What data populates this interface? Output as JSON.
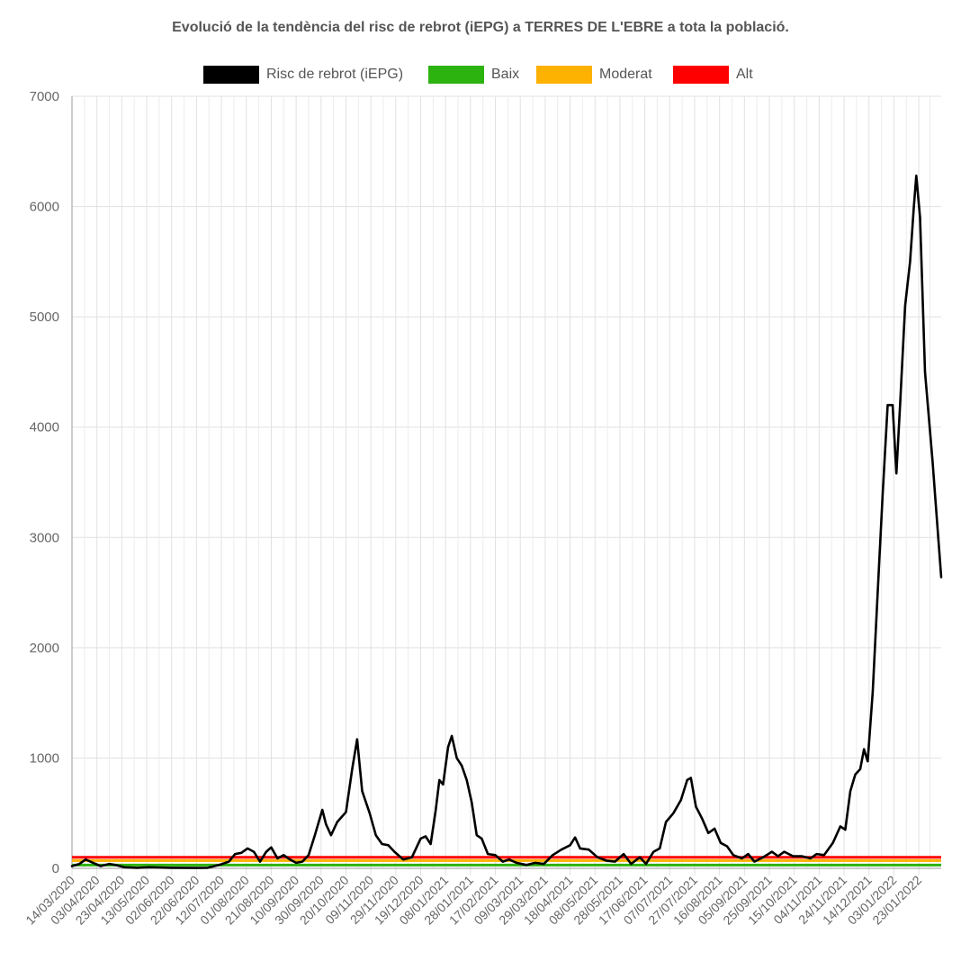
{
  "title": "Evolució de la tendència del risc de rebrot (iEPG) a TERRES DE L'EBRE a tota la població.",
  "legend": [
    {
      "label": "Risc de rebrot (iEPG)",
      "color": "#000000"
    },
    {
      "label": "Baix",
      "color": "#2db30f"
    },
    {
      "label": "Moderat",
      "color": "#fdb100"
    },
    {
      "label": "Alt",
      "color": "#fe0000"
    }
  ],
  "chart_data": {
    "type": "line",
    "title": "Evolució de la tendència del risc de rebrot (iEPG) a TERRES DE L'EBRE a tota la població.",
    "xlabel": "",
    "ylabel": "",
    "ylim": [
      0,
      7000
    ],
    "yticks": [
      0,
      1000,
      2000,
      3000,
      4000,
      5000,
      6000,
      7000
    ],
    "grid": true,
    "legend_position": "top",
    "x_start": "14/03/2020",
    "x_end": "10/02/2022",
    "x_tick_labels": [
      "14/03/2020",
      "03/04/2020",
      "23/04/2020",
      "13/05/2020",
      "02/06/2020",
      "22/06/2020",
      "12/07/2020",
      "01/08/2020",
      "21/08/2020",
      "10/09/2020",
      "30/09/2020",
      "20/10/2020",
      "09/11/2020",
      "29/11/2020",
      "19/12/2020",
      "08/01/2021",
      "28/01/2021",
      "17/02/2021",
      "09/03/2021",
      "29/03/2021",
      "18/04/2021",
      "08/05/2021",
      "28/05/2021",
      "17/06/2021",
      "07/07/2021",
      "27/07/2021",
      "16/08/2021",
      "05/09/2021",
      "25/09/2021",
      "15/10/2021",
      "04/11/2021",
      "24/11/2021",
      "14/12/2021",
      "03/01/2022",
      "23/01/2022"
    ],
    "series": [
      {
        "name": "Risc de rebrot (iEPG)",
        "color": "#000000",
        "points": [
          [
            "14/03/2020",
            20
          ],
          [
            "20/03/2020",
            40
          ],
          [
            "25/03/2020",
            80
          ],
          [
            "31/03/2020",
            50
          ],
          [
            "06/04/2020",
            20
          ],
          [
            "13/04/2020",
            40
          ],
          [
            "18/04/2020",
            30
          ],
          [
            "25/04/2020",
            10
          ],
          [
            "05/05/2020",
            5
          ],
          [
            "15/05/2020",
            10
          ],
          [
            "01/06/2020",
            5
          ],
          [
            "22/06/2020",
            3
          ],
          [
            "01/07/2020",
            5
          ],
          [
            "10/07/2020",
            30
          ],
          [
            "18/07/2020",
            60
          ],
          [
            "23/07/2020",
            130
          ],
          [
            "28/07/2020",
            140
          ],
          [
            "02/08/2020",
            180
          ],
          [
            "07/08/2020",
            150
          ],
          [
            "12/08/2020",
            60
          ],
          [
            "17/08/2020",
            150
          ],
          [
            "21/08/2020",
            190
          ],
          [
            "26/08/2020",
            90
          ],
          [
            "31/08/2020",
            120
          ],
          [
            "05/09/2020",
            80
          ],
          [
            "10/09/2020",
            50
          ],
          [
            "15/09/2020",
            60
          ],
          [
            "20/09/2020",
            120
          ],
          [
            "25/09/2020",
            300
          ],
          [
            "01/10/2020",
            530
          ],
          [
            "04/10/2020",
            400
          ],
          [
            "08/10/2020",
            300
          ],
          [
            "13/10/2020",
            420
          ],
          [
            "20/10/2020",
            510
          ],
          [
            "25/10/2020",
            900
          ],
          [
            "29/10/2020",
            1170
          ],
          [
            "02/11/2020",
            700
          ],
          [
            "08/11/2020",
            500
          ],
          [
            "13/11/2020",
            300
          ],
          [
            "18/11/2020",
            220
          ],
          [
            "23/11/2020",
            210
          ],
          [
            "28/11/2020",
            150
          ],
          [
            "05/12/2020",
            80
          ],
          [
            "12/12/2020",
            100
          ],
          [
            "19/12/2020",
            270
          ],
          [
            "23/12/2020",
            290
          ],
          [
            "27/12/2020",
            220
          ],
          [
            "31/12/2020",
            520
          ],
          [
            "03/01/2021",
            800
          ],
          [
            "06/01/2021",
            760
          ],
          [
            "10/01/2021",
            1100
          ],
          [
            "13/01/2021",
            1200
          ],
          [
            "17/01/2021",
            1000
          ],
          [
            "21/01/2021",
            930
          ],
          [
            "25/01/2021",
            800
          ],
          [
            "29/01/2021",
            600
          ],
          [
            "02/02/2021",
            300
          ],
          [
            "06/02/2021",
            270
          ],
          [
            "11/02/2021",
            130
          ],
          [
            "17/02/2021",
            120
          ],
          [
            "23/02/2021",
            60
          ],
          [
            "28/02/2021",
            80
          ],
          [
            "06/03/2021",
            50
          ],
          [
            "14/03/2021",
            30
          ],
          [
            "21/03/2021",
            50
          ],
          [
            "28/03/2021",
            40
          ],
          [
            "04/04/2021",
            120
          ],
          [
            "11/04/2021",
            170
          ],
          [
            "18/04/2021",
            210
          ],
          [
            "22/04/2021",
            280
          ],
          [
            "26/04/2021",
            180
          ],
          [
            "03/05/2021",
            170
          ],
          [
            "10/05/2021",
            100
          ],
          [
            "17/05/2021",
            70
          ],
          [
            "24/05/2021",
            60
          ],
          [
            "31/05/2021",
            130
          ],
          [
            "06/06/2021",
            40
          ],
          [
            "13/06/2021",
            100
          ],
          [
            "18/06/2021",
            40
          ],
          [
            "24/06/2021",
            150
          ],
          [
            "29/06/2021",
            180
          ],
          [
            "04/07/2021",
            420
          ],
          [
            "10/07/2021",
            500
          ],
          [
            "16/07/2021",
            620
          ],
          [
            "21/07/2021",
            800
          ],
          [
            "24/07/2021",
            820
          ],
          [
            "28/07/2021",
            560
          ],
          [
            "02/08/2021",
            450
          ],
          [
            "07/08/2021",
            320
          ],
          [
            "12/08/2021",
            360
          ],
          [
            "17/08/2021",
            230
          ],
          [
            "22/08/2021",
            200
          ],
          [
            "27/08/2021",
            120
          ],
          [
            "03/09/2021",
            90
          ],
          [
            "08/09/2021",
            130
          ],
          [
            "13/09/2021",
            60
          ],
          [
            "20/09/2021",
            100
          ],
          [
            "27/09/2021",
            150
          ],
          [
            "02/10/2021",
            110
          ],
          [
            "07/10/2021",
            150
          ],
          [
            "14/10/2021",
            110
          ],
          [
            "21/10/2021",
            110
          ],
          [
            "28/10/2021",
            90
          ],
          [
            "02/11/2021",
            130
          ],
          [
            "08/11/2021",
            120
          ],
          [
            "15/11/2021",
            230
          ],
          [
            "21/11/2021",
            380
          ],
          [
            "25/11/2021",
            350
          ],
          [
            "29/11/2021",
            700
          ],
          [
            "03/12/2021",
            850
          ],
          [
            "07/12/2021",
            900
          ],
          [
            "10/12/2021",
            1080
          ],
          [
            "13/12/2021",
            970
          ],
          [
            "17/12/2021",
            1600
          ],
          [
            "21/12/2021",
            2500
          ],
          [
            "25/12/2021",
            3400
          ],
          [
            "29/12/2021",
            4200
          ],
          [
            "02/01/2022",
            4200
          ],
          [
            "05/01/2022",
            3580
          ],
          [
            "08/01/2022",
            4200
          ],
          [
            "12/01/2022",
            5100
          ],
          [
            "16/01/2022",
            5500
          ],
          [
            "19/01/2022",
            6000
          ],
          [
            "21/01/2022",
            6280
          ],
          [
            "24/01/2022",
            5900
          ],
          [
            "28/01/2022",
            4500
          ],
          [
            "03/02/2022",
            3700
          ],
          [
            "10/02/2022",
            2640
          ]
        ]
      },
      {
        "name": "Baix",
        "color": "#2db30f",
        "constant": 30
      },
      {
        "name": "Moderat",
        "color": "#fdb100",
        "constant": 70
      },
      {
        "name": "Alt",
        "color": "#fe0000",
        "constant": 100
      }
    ]
  }
}
